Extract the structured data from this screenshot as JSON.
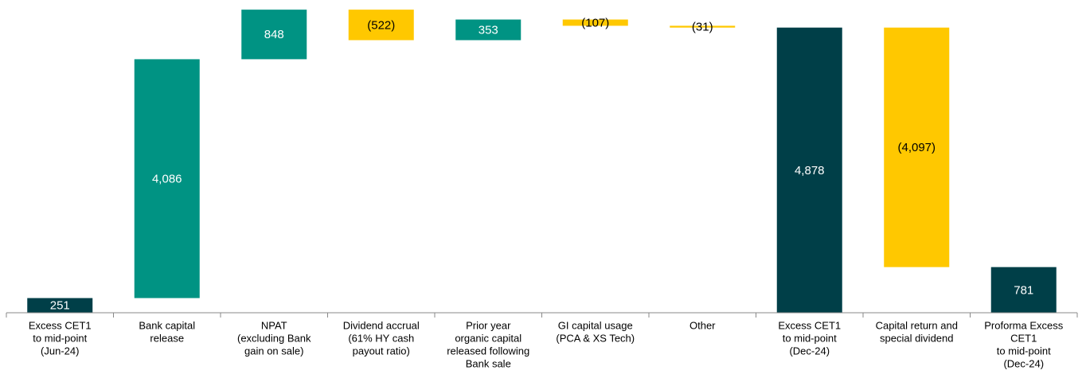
{
  "chart_data": {
    "type": "waterfall",
    "categories": [
      [
        "Excess CET1",
        "to mid-point",
        "(Jun-24)"
      ],
      [
        "Bank capital",
        "release"
      ],
      [
        "NPAT",
        "(excluding Bank",
        "gain on sale)"
      ],
      [
        "Dividend accrual",
        "(61% HY cash",
        "payout ratio)"
      ],
      [
        "Prior year",
        "organic capital",
        "released following",
        "Bank sale"
      ],
      [
        "GI capital usage",
        "(PCA & XS Tech)"
      ],
      [
        "Other"
      ],
      [
        "Excess CET1",
        "to mid-point",
        "(Dec-24)"
      ],
      [
        "Capital return and",
        "special dividend"
      ],
      [
        "Proforma Excess",
        "CET1",
        "to mid-point",
        "(Dec-24)"
      ]
    ],
    "values": [
      251,
      4086,
      848,
      -522,
      353,
      -107,
      -31,
      4878,
      -4097,
      781
    ],
    "value_labels": [
      "251",
      "4,086",
      "848",
      "(522)",
      "353",
      "(107)",
      "(31)",
      "4,878",
      "(4,097)",
      "781"
    ],
    "measure": [
      "absolute",
      "relative",
      "relative",
      "relative",
      "relative",
      "relative",
      "relative",
      "absolute",
      "relative",
      "absolute"
    ],
    "colors": [
      "#003f48",
      "#009383",
      "#009383",
      "#ffc800",
      "#009383",
      "#ffc800",
      "#ffc800",
      "#003f48",
      "#ffc800",
      "#003f48"
    ],
    "ylim": [
      0,
      5350
    ]
  }
}
